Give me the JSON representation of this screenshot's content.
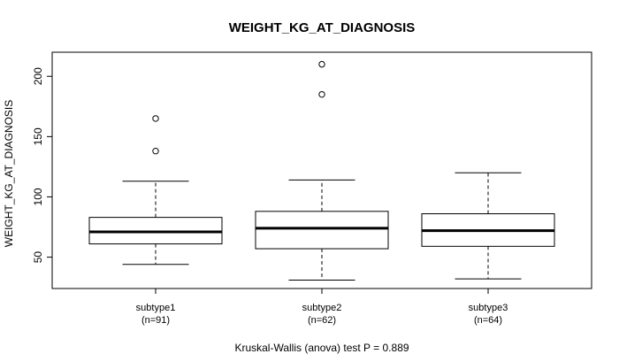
{
  "chart_data": {
    "type": "boxplot",
    "title": "WEIGHT_KG_AT_DIAGNOSIS",
    "ylabel": "WEIGHT_KG_AT_DIAGNOSIS",
    "xlabel": "",
    "ylim": [
      24,
      220
    ],
    "yticks": [
      50,
      100,
      150,
      200
    ],
    "groups": [
      {
        "label": "subtype1",
        "n_label": "(n=91)",
        "min": 44,
        "q1": 61,
        "median": 71,
        "q3": 83,
        "max": 113,
        "outliers": [
          138,
          165
        ]
      },
      {
        "label": "subtype2",
        "n_label": "(n=62)",
        "min": 31,
        "q1": 57,
        "median": 74,
        "q3": 88,
        "max": 114,
        "outliers": [
          185,
          210
        ]
      },
      {
        "label": "subtype3",
        "n_label": "(n=64)",
        "min": 32,
        "q1": 59,
        "median": 72,
        "q3": 86,
        "max": 120,
        "outliers": []
      }
    ],
    "footer": "Kruskal-Wallis (anova) test P = 0.889"
  }
}
